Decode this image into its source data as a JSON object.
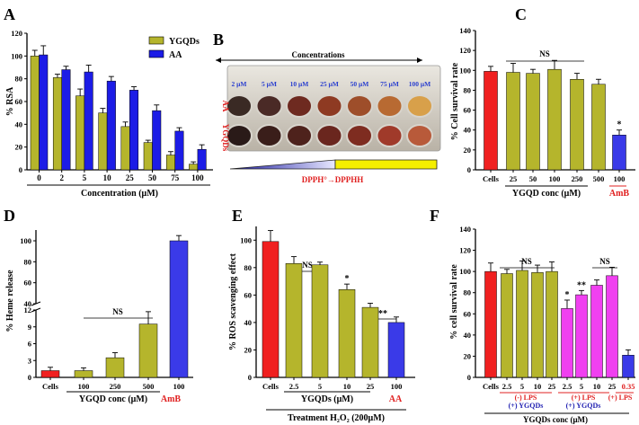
{
  "figure_colors": {
    "ygqd": "#b5b52c",
    "aa": "#1c1ce6",
    "red": "#f02020",
    "magenta": "#f040f0",
    "blue": "#3a3ae8"
  },
  "panels": {
    "A": {
      "letter": "A",
      "legend": [
        "YGQDs",
        "AA"
      ]
    },
    "B": {
      "letter": "B",
      "title": "Concentrations",
      "row_labels": [
        "AA",
        "YGQDs"
      ],
      "concentrations": [
        "2 μM",
        "5 μM",
        "10 μM",
        "25 μM",
        "50 μM",
        "75 μM",
        "100 μM"
      ],
      "reaction": "DPPH°→DPPHH"
    },
    "C": {
      "letter": "C",
      "ns": "NS"
    },
    "D": {
      "letter": "D",
      "ns": "NS"
    },
    "E": {
      "letter": "E",
      "ns": "NS",
      "treatment": "Treatment H₂O₂ (200μM)"
    },
    "F": {
      "letter": "F",
      "ns": [
        "NS",
        "NS"
      ],
      "groups": [
        "(-) LPS",
        "(+) YGQDs",
        "(+) LPS",
        "(+) YGQDs",
        "(+) LPS"
      ],
      "xlabel": "YGQDs conc (μM)"
    }
  },
  "chart_data": [
    {
      "panel": "A",
      "type": "bar",
      "categories": [
        "0",
        "2",
        "5",
        "10",
        "25",
        "50",
        "75",
        "100"
      ],
      "series": [
        {
          "name": "YGQDs",
          "values": [
            100,
            81,
            65,
            50,
            38,
            24,
            13,
            5
          ],
          "errors": [
            5,
            3,
            6,
            4,
            4,
            2,
            3,
            2
          ]
        },
        {
          "name": "AA",
          "values": [
            101,
            88,
            86,
            78,
            70,
            52,
            34,
            18
          ],
          "errors": [
            8,
            3,
            6,
            4,
            3,
            5,
            3,
            4
          ]
        }
      ],
      "xlabel": "Concentration (μM)",
      "ylabel": "% RSA",
      "ylim": [
        0,
        120
      ],
      "yticks": [
        "0",
        "20",
        "40",
        "60",
        "80",
        "100",
        "120"
      ]
    },
    {
      "panel": "C",
      "type": "bar",
      "categories": [
        "Cells",
        "25",
        "50",
        "100",
        "250",
        "500",
        "100"
      ],
      "values": [
        99,
        98,
        97,
        101,
        91,
        86,
        35
      ],
      "errors": [
        5,
        9,
        4,
        9,
        6,
        5,
        5
      ],
      "bar_colors": [
        "red",
        "ygqd",
        "ygqd",
        "ygqd",
        "ygqd",
        "ygqd",
        "blue"
      ],
      "significance": [
        {
          "index": 6,
          "label": "*"
        }
      ],
      "group_labels": [
        "YGQD conc (μM)",
        "AmB"
      ],
      "ylabel": "% Cell survival rate",
      "ylim": [
        0,
        140
      ],
      "yticks": [
        "0",
        "20",
        "40",
        "60",
        "80",
        "100",
        "120",
        "140"
      ]
    },
    {
      "panel": "D",
      "type": "bar",
      "categories": [
        "Cells",
        "100",
        "250",
        "500",
        "100"
      ],
      "values": [
        1.2,
        1.2,
        3.5,
        9.5,
        100
      ],
      "errors": [
        0.6,
        0.5,
        0.9,
        2.2,
        5
      ],
      "bar_colors": [
        "red",
        "ygqd",
        "ygqd",
        "ygqd",
        "blue"
      ],
      "axis_break": [
        12,
        40
      ],
      "group_labels": [
        "YGQD conc (μM)",
        "AmB"
      ],
      "ylabel": "% Heme release",
      "yticks": [
        "0",
        "3",
        "6",
        "9",
        "12",
        "40",
        "60",
        "80",
        "100"
      ]
    },
    {
      "panel": "E",
      "type": "bar",
      "categories": [
        "Cells",
        "2.5",
        "5",
        "10",
        "25",
        "100"
      ],
      "values": [
        99,
        83,
        82,
        64,
        51,
        40
      ],
      "errors": [
        8,
        5,
        2,
        4,
        3,
        4
      ],
      "bar_colors": [
        "red",
        "ygqd",
        "ygqd",
        "ygqd",
        "ygqd",
        "blue"
      ],
      "significance": [
        {
          "index": 3,
          "label": "*"
        },
        {
          "label": "**"
        }
      ],
      "group_labels": [
        "YGQDs (μM)",
        "AA"
      ],
      "ylabel": "% ROS scavenging effect",
      "ylim": [
        0,
        110
      ],
      "yticks": [
        "0",
        "20",
        "40",
        "60",
        "80",
        "100"
      ]
    },
    {
      "panel": "F",
      "type": "bar",
      "categories": [
        "Cells",
        "2.5",
        "5",
        "10",
        "25",
        "2.5",
        "5",
        "10",
        "25",
        "0.35"
      ],
      "values": [
        100,
        98,
        101,
        99,
        100,
        65,
        78,
        87,
        96,
        21
      ],
      "errors": [
        8,
        4,
        9,
        7,
        9,
        8,
        4,
        5,
        8,
        5
      ],
      "bar_colors": [
        "red",
        "ygqd",
        "ygqd",
        "ygqd",
        "ygqd",
        "magenta",
        "magenta",
        "magenta",
        "magenta",
        "blue"
      ],
      "significance": [
        {
          "index": 5,
          "label": "*"
        },
        {
          "index": 6,
          "label": "**"
        }
      ],
      "ylabel": "% cell survival rate",
      "ylim": [
        0,
        140
      ],
      "yticks": [
        "0",
        "20",
        "40",
        "60",
        "80",
        "100",
        "120",
        "140"
      ]
    }
  ]
}
